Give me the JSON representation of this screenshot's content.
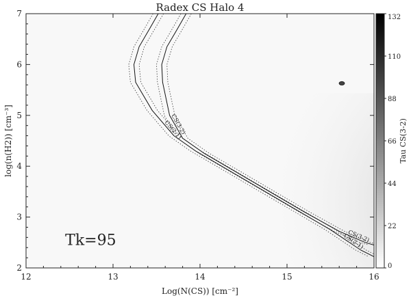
{
  "chart_data": {
    "type": "contour",
    "title": "Radex CS Halo 4",
    "xlabel": "Log(N(CS)) [cm⁻²]",
    "ylabel": "log(n(H2)) [cm⁻³]",
    "xlim": [
      12,
      16
    ],
    "ylim": [
      2,
      7
    ],
    "x_ticks": [
      "12",
      "13",
      "14",
      "15",
      "16"
    ],
    "y_ticks": [
      "2",
      "3",
      "4",
      "5",
      "6",
      "7"
    ],
    "grid": false,
    "colorbar": {
      "label": "Tau CS(3-2)",
      "range": [
        0,
        132
      ],
      "ticks": [
        "0",
        "22",
        "44",
        "66",
        "88",
        "110",
        "132"
      ],
      "colors": [
        "#ffffff",
        "#000000"
      ]
    },
    "annotation": "Tk=95",
    "series": [
      {
        "name": "CS(2-1)",
        "style": "solid",
        "points": [
          [
            13.52,
            7.0
          ],
          [
            13.42,
            6.7
          ],
          [
            13.3,
            6.35
          ],
          [
            13.24,
            6.0
          ],
          [
            13.26,
            5.65
          ],
          [
            13.45,
            5.1
          ],
          [
            13.7,
            4.6
          ],
          [
            13.95,
            4.3
          ],
          [
            14.3,
            3.95
          ],
          [
            14.7,
            3.55
          ],
          [
            15.1,
            3.15
          ],
          [
            15.5,
            2.75
          ],
          [
            15.85,
            2.35
          ],
          [
            16.0,
            2.22
          ]
        ]
      },
      {
        "name": "CS(3-2)",
        "style": "solid",
        "points": [
          [
            13.84,
            7.0
          ],
          [
            13.74,
            6.7
          ],
          [
            13.62,
            6.35
          ],
          [
            13.56,
            6.0
          ],
          [
            13.57,
            5.65
          ],
          [
            13.65,
            5.0
          ],
          [
            13.8,
            4.55
          ],
          [
            14.05,
            4.25
          ],
          [
            14.4,
            3.9
          ],
          [
            14.8,
            3.5
          ],
          [
            15.2,
            3.1
          ],
          [
            15.6,
            2.72
          ],
          [
            15.9,
            2.5
          ],
          [
            16.0,
            2.45
          ]
        ]
      }
    ],
    "confidence_offset": 0.06,
    "tau_field": {
      "peak": [
        16.0,
        3.3
      ],
      "peak_value": 40,
      "spread": [
        0.55,
        0.95
      ],
      "blob": {
        "center": [
          15.63,
          5.63
        ],
        "value": 100
      }
    }
  }
}
